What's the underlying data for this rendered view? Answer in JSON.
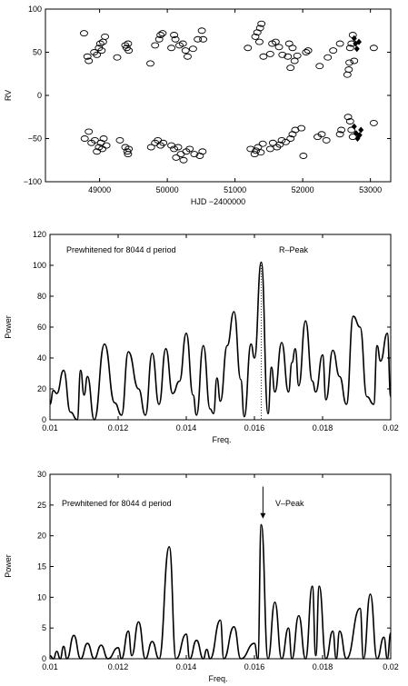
{
  "chart_data": [
    {
      "type": "scatter",
      "title": "",
      "xlabel": "HJD −2400000",
      "ylabel": "RV",
      "xlim": [
        48200,
        53300
      ],
      "ylim": [
        -100,
        100
      ],
      "xticks": [
        "49000",
        "50000",
        "51000",
        "52000",
        "53000"
      ],
      "yticks": [
        "−100",
        "−50",
        "0",
        "50",
        "100"
      ],
      "series": [
        {
          "marker": "open-circle",
          "points": [
            [
              48770,
              72
            ],
            [
              48820,
              45
            ],
            [
              48840,
              40
            ],
            [
              48920,
              50
            ],
            [
              48960,
              47
            ],
            [
              48990,
              55
            ],
            [
              49010,
              60
            ],
            [
              49030,
              52
            ],
            [
              49050,
              62
            ],
            [
              49080,
              68
            ],
            [
              49260,
              44
            ],
            [
              49380,
              58
            ],
            [
              49400,
              55
            ],
            [
              49420,
              60
            ],
            [
              49430,
              52
            ],
            [
              49750,
              37
            ],
            [
              49820,
              58
            ],
            [
              49880,
              65
            ],
            [
              49900,
              70
            ],
            [
              49930,
              72
            ],
            [
              50060,
              55
            ],
            [
              50100,
              70
            ],
            [
              50120,
              65
            ],
            [
              50180,
              58
            ],
            [
              50230,
              60
            ],
            [
              50270,
              52
            ],
            [
              50300,
              45
            ],
            [
              50380,
              54
            ],
            [
              50450,
              65
            ],
            [
              50510,
              75
            ],
            [
              50530,
              65
            ],
            [
              51190,
              55
            ],
            [
              51300,
              68
            ],
            [
              51330,
              73
            ],
            [
              51360,
              62
            ],
            [
              51370,
              78
            ],
            [
              51390,
              83
            ],
            [
              51420,
              45
            ],
            [
              51520,
              48
            ],
            [
              51550,
              60
            ],
            [
              51600,
              62
            ],
            [
              51650,
              56
            ],
            [
              51700,
              47
            ],
            [
              51780,
              45
            ],
            [
              51800,
              60
            ],
            [
              51820,
              32
            ],
            [
              51850,
              55
            ],
            [
              51880,
              40
            ],
            [
              51920,
              46
            ],
            [
              52050,
              50
            ],
            [
              52080,
              52
            ],
            [
              52250,
              34
            ],
            [
              52370,
              44
            ],
            [
              52450,
              52
            ],
            [
              52550,
              60
            ],
            [
              52660,
              24
            ],
            [
              52680,
              30
            ],
            [
              52690,
              38
            ],
            [
              52700,
              55
            ],
            [
              52720,
              60
            ],
            [
              52740,
              70
            ],
            [
              52760,
              40
            ],
            [
              53050,
              55
            ],
            [
              48780,
              -50
            ],
            [
              48840,
              -42
            ],
            [
              48880,
              -55
            ],
            [
              48930,
              -52
            ],
            [
              48960,
              -65
            ],
            [
              48990,
              -60
            ],
            [
              49020,
              -55
            ],
            [
              49040,
              -62
            ],
            [
              49060,
              -50
            ],
            [
              49100,
              -58
            ],
            [
              49300,
              -52
            ],
            [
              49380,
              -60
            ],
            [
              49410,
              -65
            ],
            [
              49420,
              -68
            ],
            [
              49430,
              -62
            ],
            [
              49760,
              -60
            ],
            [
              49820,
              -55
            ],
            [
              49860,
              -52
            ],
            [
              49900,
              -58
            ],
            [
              49940,
              -55
            ],
            [
              50060,
              -58
            ],
            [
              50100,
              -62
            ],
            [
              50130,
              -72
            ],
            [
              50160,
              -60
            ],
            [
              50200,
              -68
            ],
            [
              50240,
              -75
            ],
            [
              50280,
              -65
            ],
            [
              50330,
              -62
            ],
            [
              50400,
              -68
            ],
            [
              50480,
              -70
            ],
            [
              50520,
              -65
            ],
            [
              51230,
              -62
            ],
            [
              51290,
              -68
            ],
            [
              51310,
              -64
            ],
            [
              51340,
              -60
            ],
            [
              51380,
              -66
            ],
            [
              51410,
              -56
            ],
            [
              51520,
              -62
            ],
            [
              51560,
              -55
            ],
            [
              51620,
              -60
            ],
            [
              51660,
              -57
            ],
            [
              51690,
              -52
            ],
            [
              51750,
              -54
            ],
            [
              51820,
              -50
            ],
            [
              51850,
              -45
            ],
            [
              51890,
              -40
            ],
            [
              51980,
              -38
            ],
            [
              52010,
              -70
            ],
            [
              52220,
              -48
            ],
            [
              52280,
              -45
            ],
            [
              52350,
              -52
            ],
            [
              52550,
              -45
            ],
            [
              52570,
              -40
            ],
            [
              52670,
              -25
            ],
            [
              52700,
              -30
            ],
            [
              52720,
              -40
            ],
            [
              52740,
              -48
            ],
            [
              53050,
              -32
            ]
          ]
        },
        {
          "marker": "filled-diamond",
          "points": [
            [
              52760,
              66
            ],
            [
              52780,
              60
            ],
            [
              52800,
              54
            ],
            [
              52830,
              62
            ],
            [
              52760,
              -36
            ],
            [
              52790,
              -44
            ],
            [
              52810,
              -50
            ],
            [
              52840,
              -46
            ],
            [
              52860,
              -40
            ]
          ]
        }
      ]
    },
    {
      "type": "line",
      "title": "",
      "xlabel": "Freq.",
      "ylabel": "Power",
      "xlim": [
        0.01,
        0.02
      ],
      "ylim": [
        0,
        120
      ],
      "xticks": [
        "0.01",
        "0.012",
        "0.014",
        "0.016",
        "0.018",
        "0.02"
      ],
      "yticks": [
        "0",
        "20",
        "40",
        "60",
        "80",
        "100",
        "120"
      ],
      "annotations": [
        "Prewhitened for 8044 d period",
        "R–Peak"
      ],
      "peaks": [
        [
          0.01,
          10
        ],
        [
          0.0101,
          19
        ],
        [
          0.0102,
          17
        ],
        [
          0.0104,
          32
        ],
        [
          0.0106,
          5
        ],
        [
          0.0108,
          0
        ],
        [
          0.0109,
          32
        ],
        [
          0.011,
          16
        ],
        [
          0.0111,
          28
        ],
        [
          0.0113,
          0
        ],
        [
          0.0116,
          49
        ],
        [
          0.0119,
          11
        ],
        [
          0.0121,
          3
        ],
        [
          0.0123,
          44
        ],
        [
          0.0126,
          20
        ],
        [
          0.0128,
          3
        ],
        [
          0.013,
          43
        ],
        [
          0.0132,
          10
        ],
        [
          0.0134,
          46
        ],
        [
          0.0136,
          17
        ],
        [
          0.0138,
          25
        ],
        [
          0.014,
          56
        ],
        [
          0.0142,
          16
        ],
        [
          0.0143,
          3
        ],
        [
          0.0145,
          48
        ],
        [
          0.0147,
          7
        ],
        [
          0.0148,
          4
        ],
        [
          0.0149,
          27
        ],
        [
          0.015,
          12
        ],
        [
          0.0152,
          48
        ],
        [
          0.0154,
          70
        ],
        [
          0.0156,
          26
        ],
        [
          0.0157,
          2
        ],
        [
          0.0159,
          49
        ],
        [
          0.016,
          40
        ],
        [
          0.0162,
          102
        ],
        [
          0.0164,
          4
        ],
        [
          0.0165,
          34
        ],
        [
          0.0166,
          18
        ],
        [
          0.0168,
          50
        ],
        [
          0.017,
          18
        ],
        [
          0.0171,
          37
        ],
        [
          0.0172,
          46
        ],
        [
          0.0173,
          22
        ],
        [
          0.0175,
          64
        ],
        [
          0.0177,
          25
        ],
        [
          0.0178,
          18
        ],
        [
          0.018,
          42
        ],
        [
          0.0181,
          13
        ],
        [
          0.0183,
          45
        ],
        [
          0.0185,
          28
        ],
        [
          0.0187,
          10
        ],
        [
          0.0189,
          67
        ],
        [
          0.0191,
          60
        ],
        [
          0.0193,
          15
        ],
        [
          0.0195,
          10
        ],
        [
          0.0196,
          48
        ],
        [
          0.0197,
          38
        ],
        [
          0.0199,
          56
        ],
        [
          0.02,
          15
        ]
      ]
    },
    {
      "type": "line",
      "title": "",
      "xlabel": "Freq.",
      "ylabel": "Power",
      "xlim": [
        0.01,
        0.02
      ],
      "ylim": [
        0,
        30
      ],
      "xticks": [
        "0.01",
        "0.012",
        "0.014",
        "0.016",
        "0.018",
        "0.02"
      ],
      "yticks": [
        "0",
        "5",
        "10",
        "15",
        "20",
        "25",
        "30"
      ],
      "annotations": [
        "Prewhitened for 8044 d period",
        "V–Peak"
      ],
      "arrow_at": 0.01625,
      "peaks": [
        [
          0.01,
          0.5
        ],
        [
          0.0101,
          0
        ],
        [
          0.0102,
          1.2
        ],
        [
          0.0103,
          0
        ],
        [
          0.0104,
          2.0
        ],
        [
          0.0105,
          0
        ],
        [
          0.0107,
          3.8
        ],
        [
          0.0109,
          0
        ],
        [
          0.0111,
          2.5
        ],
        [
          0.0113,
          0
        ],
        [
          0.0115,
          2.2
        ],
        [
          0.0117,
          0
        ],
        [
          0.012,
          1.8
        ],
        [
          0.0121,
          0
        ],
        [
          0.0123,
          4.5
        ],
        [
          0.0124,
          0.5
        ],
        [
          0.0126,
          6.0
        ],
        [
          0.0128,
          0
        ],
        [
          0.013,
          2.8
        ],
        [
          0.0132,
          0
        ],
        [
          0.0135,
          18.2
        ],
        [
          0.0137,
          0
        ],
        [
          0.014,
          4.0
        ],
        [
          0.0141,
          0
        ],
        [
          0.0143,
          3.0
        ],
        [
          0.0145,
          0
        ],
        [
          0.0146,
          1.5
        ],
        [
          0.0147,
          0
        ],
        [
          0.015,
          6.3
        ],
        [
          0.0151,
          0
        ],
        [
          0.0154,
          5.2
        ],
        [
          0.0156,
          0
        ],
        [
          0.016,
          2.5
        ],
        [
          0.0161,
          0
        ],
        [
          0.0162,
          21.8
        ],
        [
          0.0164,
          0
        ],
        [
          0.0166,
          9.2
        ],
        [
          0.0168,
          0
        ],
        [
          0.017,
          5.0
        ],
        [
          0.0171,
          0
        ],
        [
          0.0173,
          7.0
        ],
        [
          0.0175,
          0
        ],
        [
          0.0177,
          11.8
        ],
        [
          0.0178,
          0.5
        ],
        [
          0.0179,
          11.8
        ],
        [
          0.0181,
          0
        ],
        [
          0.0183,
          4.5
        ],
        [
          0.0184,
          0
        ],
        [
          0.0185,
          4.5
        ],
        [
          0.0187,
          0
        ],
        [
          0.0191,
          8.2
        ],
        [
          0.0192,
          0
        ],
        [
          0.0194,
          10.5
        ],
        [
          0.0196,
          0
        ],
        [
          0.0198,
          3.5
        ],
        [
          0.0199,
          0
        ],
        [
          0.02,
          4.2
        ]
      ]
    }
  ]
}
